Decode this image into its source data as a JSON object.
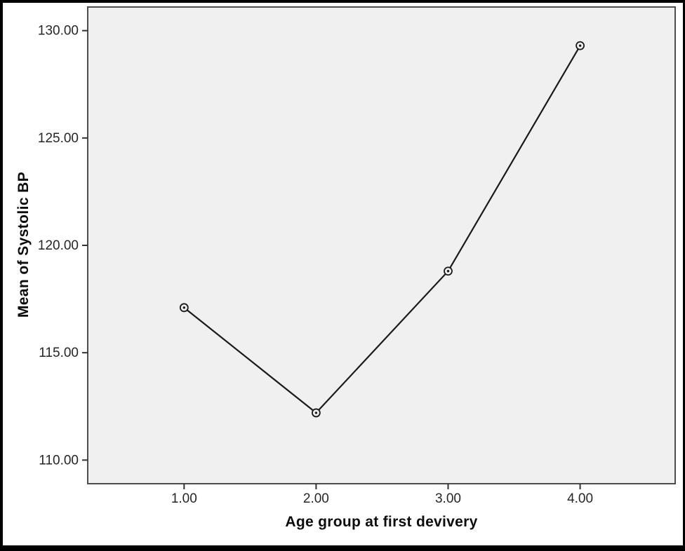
{
  "figure": {
    "background": "#ffffff",
    "frame_border_color": "#000000"
  },
  "chart_data": {
    "type": "line",
    "title": "",
    "xlabel": "Age group at first devivery",
    "ylabel": "Mean of Systolic BP",
    "x": [
      1,
      2,
      3,
      4
    ],
    "x_tick_labels": [
      "1.00",
      "2.00",
      "3.00",
      "4.00"
    ],
    "series": [
      {
        "name": "Mean of Systolic BP",
        "values": [
          117.1,
          112.2,
          118.8,
          129.3
        ]
      }
    ],
    "y_ticks": [
      110,
      115,
      120,
      125,
      130
    ],
    "y_tick_labels": [
      "110.00",
      "115.00",
      "120.00",
      "125.00",
      "130.00"
    ],
    "xlim": [
      0.27,
      4.72
    ],
    "ylim": [
      108.9,
      131.1
    ],
    "grid": false,
    "legend_position": "none",
    "marker": "open-circle",
    "colors": {
      "line": "#1a1a1a",
      "marker_stroke": "#1a1a1a",
      "marker_dot": "#1a1a1a",
      "plot_background": "#f0f0f0",
      "plot_border": "#4d4d4d",
      "tick_mark": "#333333",
      "tick_text": "#262626"
    }
  }
}
